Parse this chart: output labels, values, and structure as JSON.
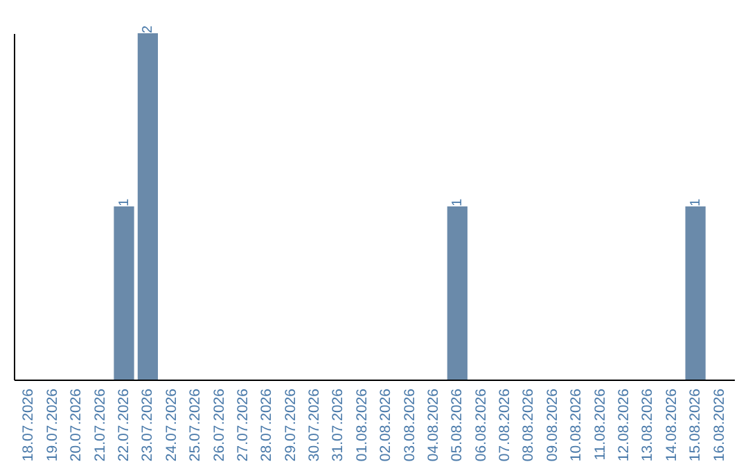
{
  "chart_data": {
    "type": "bar",
    "categories": [
      "18.07.2026",
      "19.07.2026",
      "20.07.2026",
      "21.07.2026",
      "22.07.2026",
      "23.07.2026",
      "24.07.2026",
      "25.07.2026",
      "26.07.2026",
      "27.07.2026",
      "28.07.2026",
      "29.07.2026",
      "30.07.2026",
      "31.07.2026",
      "01.08.2026",
      "02.08.2026",
      "03.08.2026",
      "04.08.2026",
      "05.08.2026",
      "06.08.2026",
      "07.08.2026",
      "08.08.2026",
      "09.08.2026",
      "10.08.2026",
      "11.08.2026",
      "12.08.2026",
      "13.08.2026",
      "14.08.2026",
      "15.08.2026",
      "16.08.2026"
    ],
    "values": [
      0,
      0,
      0,
      0,
      1,
      2,
      0,
      0,
      0,
      0,
      0,
      0,
      0,
      0,
      0,
      0,
      0,
      0,
      1,
      0,
      0,
      0,
      0,
      0,
      0,
      0,
      0,
      0,
      1,
      0
    ],
    "value_labels": [
      null,
      null,
      null,
      null,
      "1",
      "2",
      null,
      null,
      null,
      null,
      null,
      null,
      null,
      null,
      null,
      null,
      null,
      null,
      "1",
      null,
      null,
      null,
      null,
      null,
      null,
      null,
      null,
      null,
      "1",
      null
    ],
    "color": "#6a8aaa",
    "tick_labels": "x",
    "grid": false
  }
}
